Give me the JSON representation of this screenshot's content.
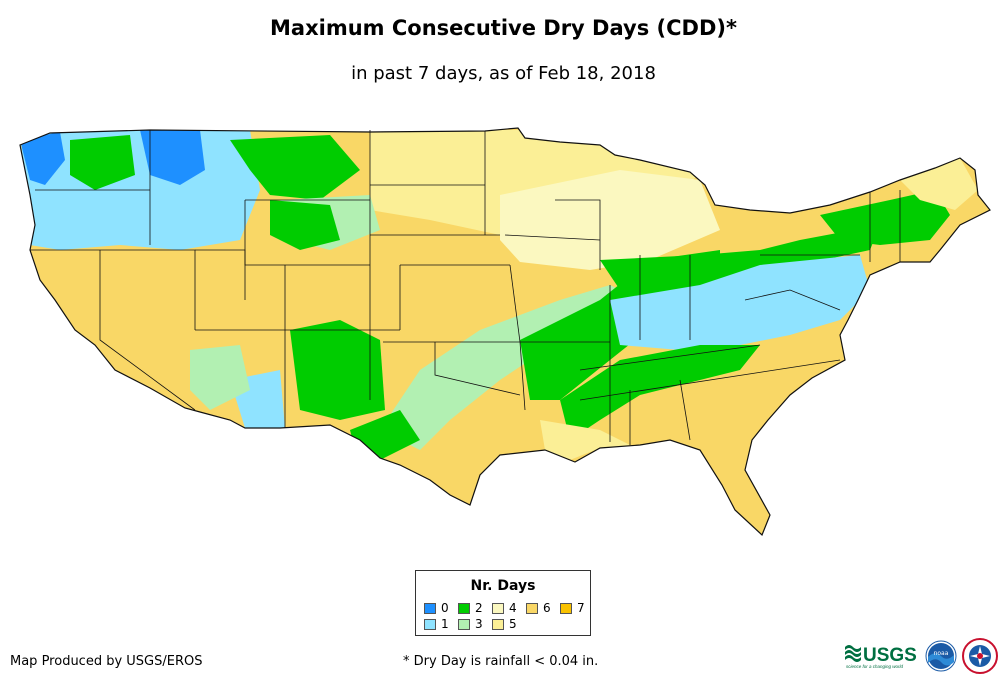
{
  "title": "Maximum Consecutive Dry Days (CDD)*",
  "subtitle": "in past 7 days, as of Feb 18, 2018",
  "legend": {
    "title": "Nr. Days",
    "items": [
      {
        "label": "0",
        "color": "#1e90ff"
      },
      {
        "label": "1",
        "color": "#8fe3ff"
      },
      {
        "label": "2",
        "color": "#00cc00"
      },
      {
        "label": "3",
        "color": "#b2f0b2"
      },
      {
        "label": "4",
        "color": "#fbf8c0"
      },
      {
        "label": "5",
        "color": "#fbef96"
      },
      {
        "label": "6",
        "color": "#f9d766"
      },
      {
        "label": "7",
        "color": "#f9c200"
      }
    ]
  },
  "footer": {
    "producer": "Map Produced by USGS/EROS",
    "note": "* Dry Day is rainfall < 0.04 in."
  },
  "logos": {
    "usgs_text": "USGS",
    "usgs_tagline": "science for a changing world",
    "noaa_text": "noaa"
  }
}
